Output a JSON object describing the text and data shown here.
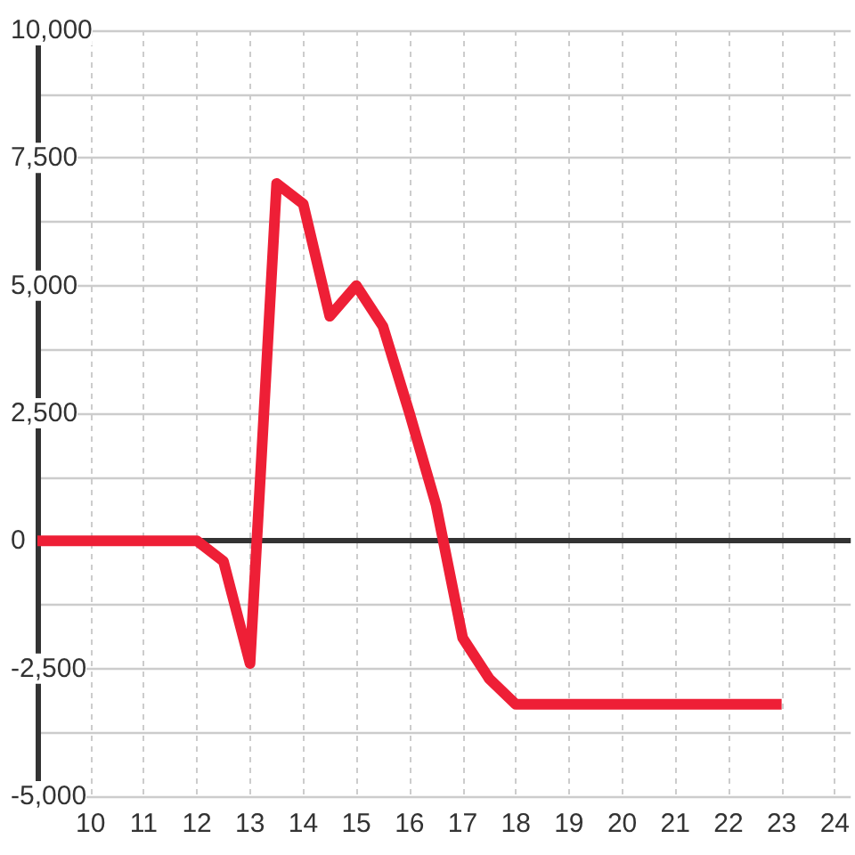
{
  "chart_data": {
    "type": "line",
    "x": [
      9,
      12,
      12.5,
      13,
      13.5,
      14,
      14.5,
      15,
      15.5,
      16,
      16.5,
      17,
      17.5,
      18,
      23
    ],
    "values": [
      0,
      0,
      -400,
      -2400,
      7000,
      6600,
      4400,
      5000,
      4200,
      2500,
      700,
      -1900,
      -2700,
      -3200,
      -3200
    ],
    "color": "#ee1f36",
    "xlim": [
      9,
      24.3
    ],
    "xticks": [
      10,
      11,
      12,
      13,
      14,
      15,
      16,
      17,
      18,
      19,
      20,
      21,
      22,
      23,
      24
    ],
    "ylim": [
      -5000,
      10000
    ],
    "yticks": [
      {
        "value": -5000,
        "label": "-5,000"
      },
      {
        "value": -3750,
        "label": null
      },
      {
        "value": -2500,
        "label": "-2,500"
      },
      {
        "value": -1250,
        "label": null
      },
      0,
      {
        "value": 1250,
        "label": null
      },
      {
        "value": 2500,
        "label": "2,500"
      },
      {
        "value": 3750,
        "label": null
      },
      {
        "value": 5000,
        "label": "5,000"
      },
      {
        "value": 6250,
        "label": null
      },
      {
        "value": 7500,
        "label": "7,500"
      },
      {
        "value": 8750,
        "label": null
      },
      {
        "value": 10000,
        "label": "10,000"
      }
    ],
    "ref_lines": [
      {
        "axis": "y",
        "value": 0,
        "color": "#333333"
      }
    ],
    "grid": true,
    "marker": "none",
    "line_style": "solid"
  }
}
